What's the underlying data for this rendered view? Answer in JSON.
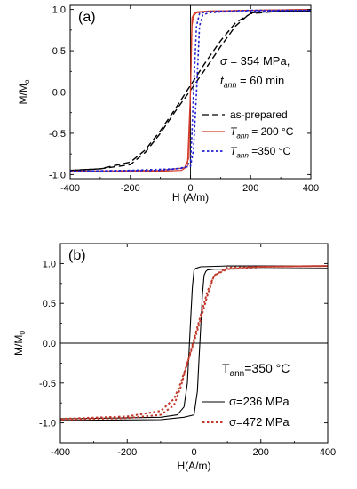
{
  "chart_data": [
    {
      "type": "line",
      "panel_label": "(a)",
      "xlabel": "H (A/m)",
      "ylabel": "M/M",
      "ylabel_sub": "o",
      "xlim": [
        -400,
        400
      ],
      "ylim": [
        -1.05,
        1.05
      ],
      "xticks": [
        -400,
        -200,
        0,
        200,
        400
      ],
      "yticks": [
        -1.0,
        -0.5,
        0.0,
        0.5,
        1.0
      ],
      "xtick_labels": [
        "-400",
        "-200",
        "0",
        "200",
        "400"
      ],
      "ytick_labels": [
        "-1.0",
        "-0.5",
        "0.0",
        "0.5",
        "1.0"
      ],
      "annotation": {
        "line1": {
          "sym": "σ",
          "rest": " = 354 MPa,"
        },
        "line2": {
          "sym": "t",
          "sub": "ann",
          "rest": " = 60 min"
        }
      },
      "legend_position": "bottom-right",
      "series": [
        {
          "name": "as-prepared",
          "color": "#000000",
          "dash": "long-dash",
          "branches": [
            {
              "x": [
                -400,
                -300,
                -200,
                -150,
                -100,
                -50,
                0,
                50,
                100,
                150,
                200,
                300,
                400
              ],
              "y": [
                -0.95,
                -0.93,
                -0.88,
                -0.73,
                -0.5,
                -0.23,
                0.02,
                0.28,
                0.55,
                0.8,
                0.96,
                0.98,
                0.98
              ]
            },
            {
              "x": [
                400,
                300,
                200,
                150,
                100,
                50,
                0,
                -50,
                -100,
                -150,
                -200,
                -300,
                -400
              ],
              "y": [
                0.98,
                0.98,
                0.95,
                0.84,
                0.62,
                0.36,
                0.08,
                -0.2,
                -0.47,
                -0.7,
                -0.85,
                -0.93,
                -0.95
              ]
            }
          ]
        },
        {
          "name": "T_ann = 200 °C",
          "legend": {
            "sym": "T",
            "sub": "ann",
            "rest": " = 200 °C"
          },
          "color": "#d23c2a",
          "dash": "solid",
          "branches": [
            {
              "x": [
                -400,
                -100,
                -20,
                -5,
                0,
                5,
                12,
                20,
                60,
                200,
                400
              ],
              "y": [
                -0.96,
                -0.95,
                -0.92,
                -0.8,
                0.0,
                0.9,
                0.95,
                0.97,
                0.98,
                0.99,
                1.0
              ]
            },
            {
              "x": [
                400,
                200,
                60,
                20,
                10,
                5,
                0,
                -10,
                -30,
                -100,
                -400
              ],
              "y": [
                1.0,
                0.99,
                0.98,
                0.96,
                0.92,
                0.8,
                0.0,
                -0.9,
                -0.95,
                -0.96,
                -0.96
              ]
            }
          ]
        },
        {
          "name": "T_ann = 350 °C",
          "legend": {
            "sym": "T",
            "sub": "ann",
            "rest": " =350 °C"
          },
          "color": "#2020d0",
          "dash": "dot",
          "branches": [
            {
              "x": [
                -400,
                -200,
                -50,
                0,
                10,
                20,
                25,
                30,
                40,
                60,
                100,
                200,
                400
              ],
              "y": [
                -0.96,
                -0.95,
                -0.93,
                -0.9,
                -0.7,
                0.0,
                0.4,
                0.8,
                0.93,
                0.96,
                0.97,
                0.98,
                0.99
              ]
            },
            {
              "x": [
                400,
                200,
                100,
                50,
                30,
                20,
                15,
                10,
                5,
                0,
                -20,
                -100,
                -400
              ],
              "y": [
                0.99,
                0.99,
                0.98,
                0.97,
                0.95,
                0.8,
                0.4,
                0.0,
                -0.5,
                -0.85,
                -0.92,
                -0.95,
                -0.96
              ]
            }
          ]
        }
      ]
    },
    {
      "type": "line",
      "panel_label": "(b)",
      "xlabel": "H(A/m)",
      "ylabel": "M/M",
      "ylabel_sub": "0",
      "xlim": [
        -400,
        400
      ],
      "ylim": [
        -1.25,
        1.25
      ],
      "xticks": [
        -400,
        -200,
        0,
        200,
        400
      ],
      "yticks": [
        -1.0,
        -0.5,
        0.0,
        0.5,
        1.0
      ],
      "xtick_labels": [
        "-400",
        "-200",
        "0",
        "200",
        "400"
      ],
      "ytick_labels": [
        "-1.0",
        "-0.5",
        "0.0",
        "0.5",
        "1.0"
      ],
      "annotation": {
        "line1": {
          "sym": "T",
          "sub": "ann",
          "rest": "=350 °C"
        }
      },
      "legend_position": "bottom-right",
      "series": [
        {
          "name": "σ=236 MPa",
          "color": "#000000",
          "dash": "solid",
          "branches": [
            {
              "x": [
                -400,
                -100,
                -30,
                0,
                10,
                15,
                20,
                25,
                30,
                35,
                40,
                60,
                400
              ],
              "y": [
                -0.97,
                -0.96,
                -0.93,
                -0.9,
                -0.6,
                -0.2,
                0.2,
                0.6,
                0.85,
                0.9,
                0.92,
                0.93,
                0.94
              ]
            },
            {
              "x": [
                400,
                100,
                20,
                5,
                0,
                -5,
                -10,
                -15,
                -20,
                -30,
                -50,
                -100,
                -400
              ],
              "y": [
                0.97,
                0.97,
                0.96,
                0.94,
                0.92,
                0.7,
                0.3,
                -0.1,
                -0.5,
                -0.8,
                -0.9,
                -0.93,
                -0.95
              ]
            }
          ]
        },
        {
          "name": "σ=472 MPa",
          "color": "#c0392b",
          "dash": "dot",
          "branches": [
            {
              "x": [
                -400,
                -200,
                -100,
                -60,
                -40,
                -20,
                0,
                20,
                40,
                60,
                100,
                200,
                400
              ],
              "y": [
                -0.95,
                -0.92,
                -0.85,
                -0.7,
                -0.5,
                -0.25,
                0.02,
                0.3,
                0.6,
                0.85,
                0.95,
                0.96,
                0.97
              ]
            },
            {
              "x": [
                400,
                200,
                100,
                60,
                40,
                20,
                0,
                -20,
                -40,
                -60,
                -100,
                -200,
                -400
              ],
              "y": [
                0.97,
                0.96,
                0.93,
                0.85,
                0.65,
                0.35,
                0.05,
                -0.25,
                -0.55,
                -0.78,
                -0.9,
                -0.94,
                -0.96
              ]
            }
          ]
        }
      ]
    }
  ]
}
